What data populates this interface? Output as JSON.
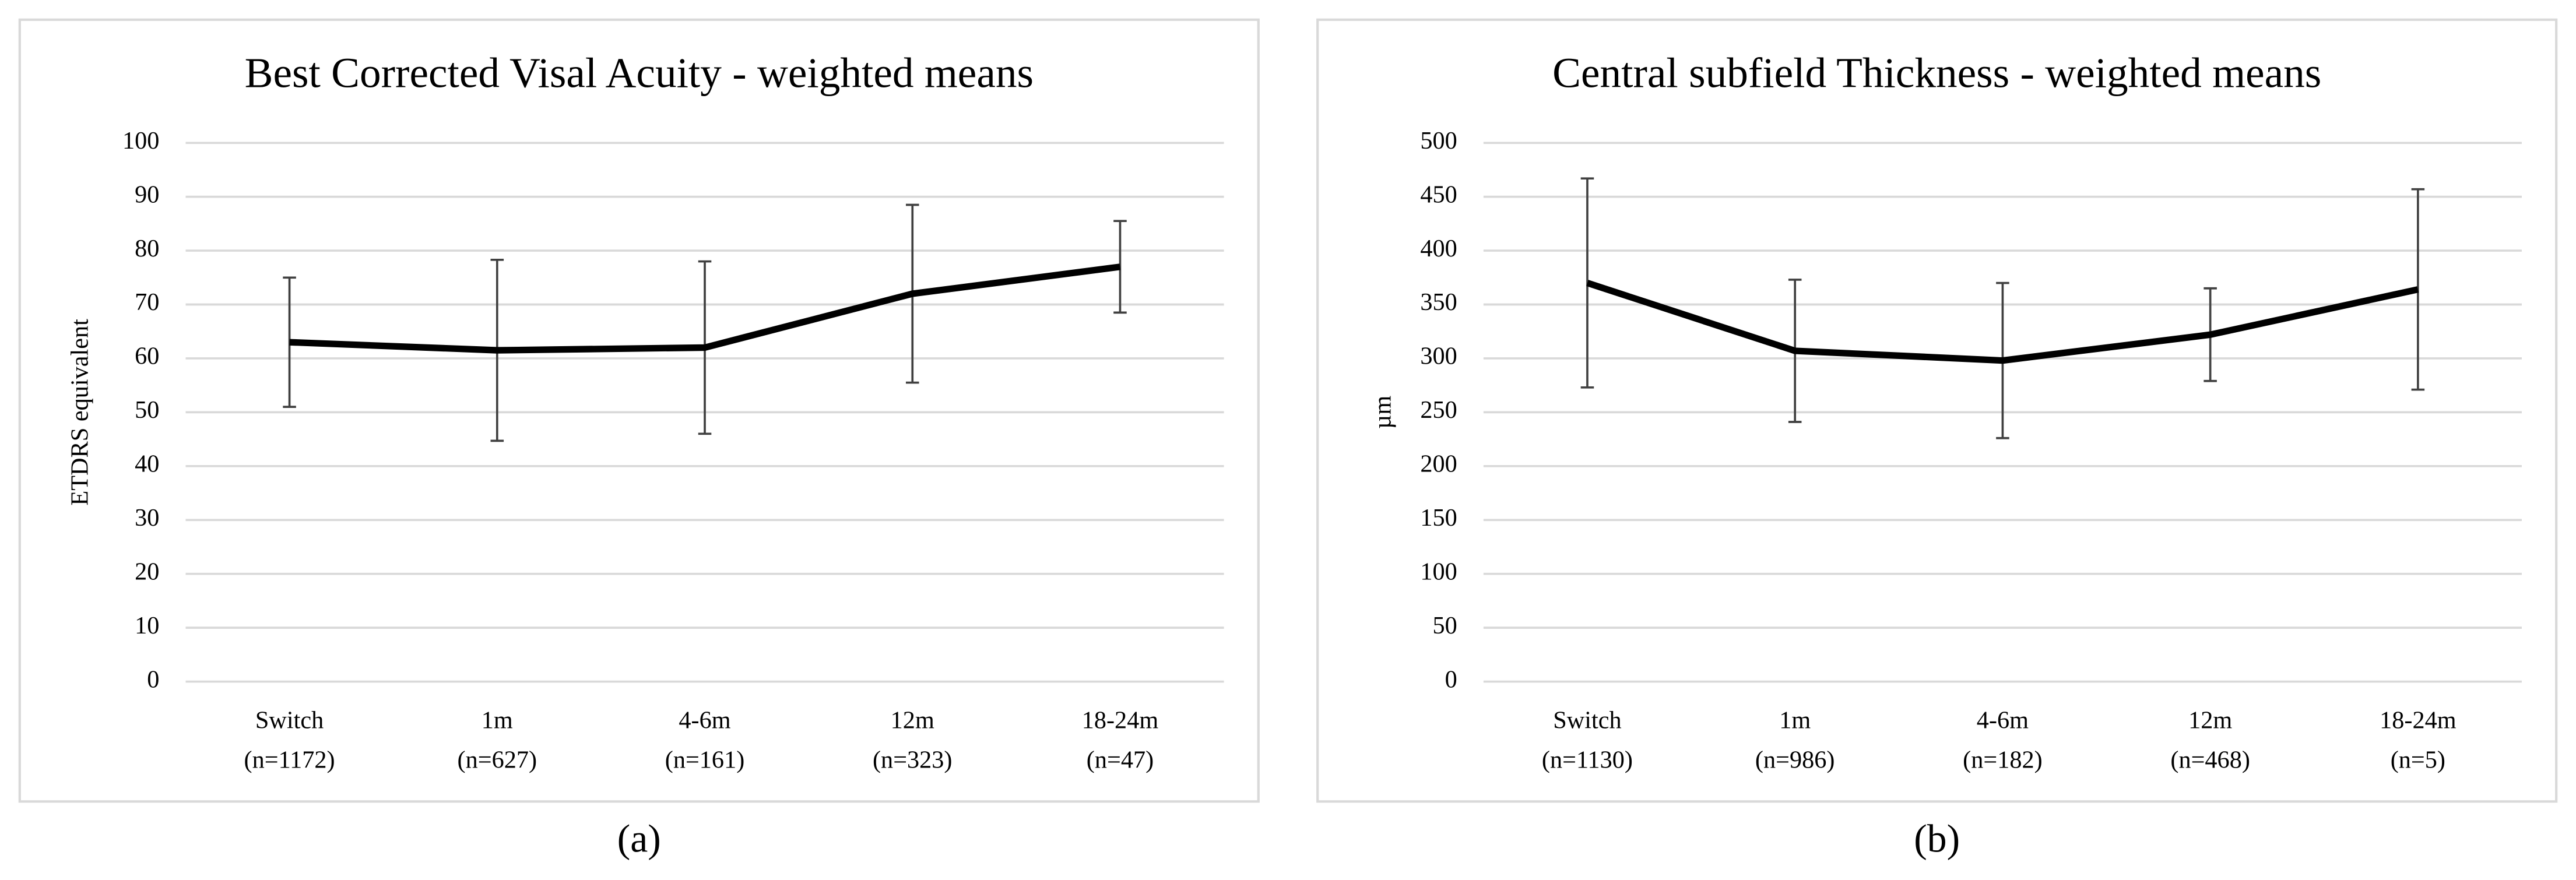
{
  "chart_data": [
    {
      "type": "line",
      "title": "Best Corrected Visal Acuity - weighted means",
      "y_label": "ETDRS equivalent",
      "caption": "(a)",
      "categories": [
        "Switch",
        "1m",
        "4-6m",
        "12m",
        "18-24m"
      ],
      "category_counts": [
        "(n=1172)",
        "(n=627)",
        "(n=161)",
        "(n=323)",
        "(n=47)"
      ],
      "series": [
        {
          "color": "#000000",
          "values": [
            63,
            61.5,
            62,
            72,
            77
          ],
          "errors": [
            12,
            16.8,
            16,
            16.5,
            8.5
          ]
        }
      ],
      "ylim": [
        0,
        100
      ],
      "yticks": [
        0,
        10,
        20,
        30,
        40,
        50,
        60,
        70,
        80,
        90,
        100
      ],
      "grid": true
    },
    {
      "type": "line",
      "title": "Central subfield Thickness - weighted means",
      "y_label": "µm",
      "caption": "(b)",
      "categories": [
        "Switch",
        "1m",
        "4-6m",
        "12m",
        "18-24m"
      ],
      "category_counts": [
        "(n=1130)",
        "(n=986)",
        "(n=182)",
        "(n=468)",
        "(n=5)"
      ],
      "series": [
        {
          "color": "#000000",
          "values": [
            370,
            307,
            298,
            322,
            364
          ],
          "errors": [
            97,
            66,
            72,
            43,
            93
          ]
        }
      ],
      "ylim": [
        0,
        500
      ],
      "yticks": [
        0,
        50,
        100,
        150,
        200,
        250,
        300,
        350,
        400,
        450,
        500
      ],
      "grid": true
    }
  ]
}
